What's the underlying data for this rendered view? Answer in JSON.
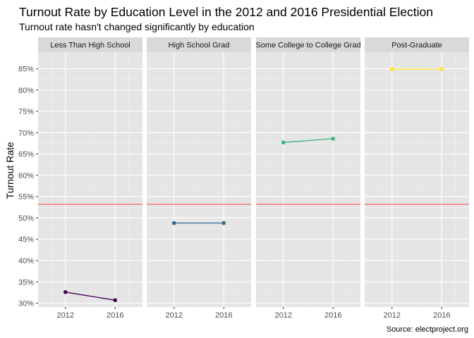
{
  "chart_data": {
    "type": "line",
    "title": "Turnout Rate by Education Level in the 2012 and 2016 Presidential Election",
    "subtitle": "Turnout rate hasn't changed significantly by education",
    "xlabel": "",
    "ylabel": "Turnout Rate",
    "caption": "Source: electproject.org",
    "x": [
      2012,
      2016
    ],
    "x_ticks": [
      "2012",
      "2016"
    ],
    "xlim": [
      2009.8,
      2018.2
    ],
    "ylim": [
      0.291,
      0.889
    ],
    "y_ticks": [
      {
        "value": 0.3,
        "label": "30%"
      },
      {
        "value": 0.35,
        "label": "35%"
      },
      {
        "value": 0.4,
        "label": "40%"
      },
      {
        "value": 0.45,
        "label": "45%"
      },
      {
        "value": 0.5,
        "label": "50%"
      },
      {
        "value": 0.55,
        "label": "55%"
      },
      {
        "value": 0.6,
        "label": "60%"
      },
      {
        "value": 0.65,
        "label": "65%"
      },
      {
        "value": 0.7,
        "label": "70%"
      },
      {
        "value": 0.75,
        "label": "75%"
      },
      {
        "value": 0.8,
        "label": "80%"
      },
      {
        "value": 0.85,
        "label": "85%"
      }
    ],
    "reference_line": {
      "value": 0.532,
      "color": "#ff3b3b"
    },
    "grid": true,
    "legend": "none",
    "panel_background": "#e5e5e5",
    "strip_background": "#d9d9d9",
    "facets": [
      {
        "label": "Less Than High School",
        "color": "#440154",
        "values": [
          0.326,
          0.307
        ]
      },
      {
        "label": "High School Grad",
        "color": "#31688e",
        "values": [
          0.488,
          0.488
        ]
      },
      {
        "label": "Some College to College Grad",
        "color": "#35b779",
        "values": [
          0.677,
          0.686
        ]
      },
      {
        "label": "Post-Graduate",
        "color": "#fde725",
        "values": [
          0.849,
          0.849
        ]
      }
    ]
  }
}
